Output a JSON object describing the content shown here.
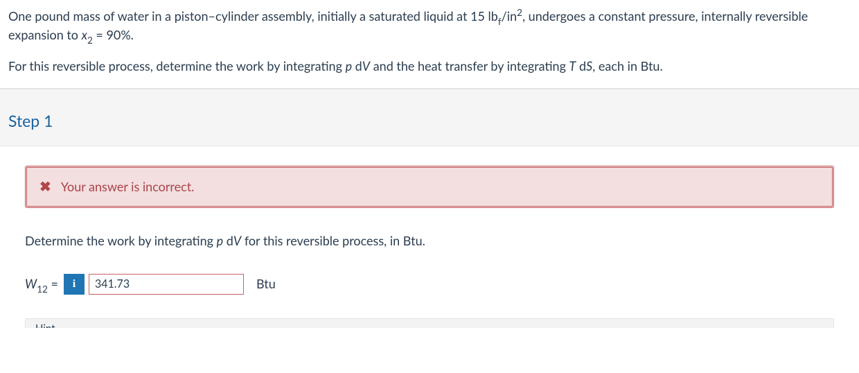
{
  "question": {
    "paragraph1_html": "One pound mass of water in a piston–cylinder assembly, initially a saturated liquid at 15 lb<sub>f</sub>/in<sup>2</sup>, undergoes a constant pressure, internally reversible expansion to <span class=\"italic\">x</span><sub>2</sub> = 90%.",
    "paragraph2_html": "For this reversible process, determine the work by integrating <span class=\"italic\">p</span> d<span class=\"italic\">V</span> and the heat transfer by integrating <span class=\"italic\">T</span> d<span class=\"italic\">S</span>, each in Btu."
  },
  "step": {
    "title": "Step 1",
    "feedback": {
      "status": "incorrect",
      "message": "Your answer is incorrect."
    },
    "prompt_html": "Determine the work by integrating <span class=\"italic\">p</span> d<span class=\"italic\">V</span> for this reversible process, in Btu.",
    "answer": {
      "label_html": "<span class=\"italic\">W</span><sub>12</sub> =",
      "info_badge": "i",
      "value": "341.73",
      "unit": "Btu"
    }
  },
  "colors": {
    "text": "#2b3d4f",
    "step_title": "#1a629e",
    "step_bg": "#f5f5f5",
    "feedback_bg": "#f4dfe0",
    "feedback_border": "#c1595a",
    "feedback_text": "#a9444a",
    "x_icon": "#b24647",
    "info_badge_bg": "#2076b3",
    "input_border": "#c56363",
    "divider": "#e4e4e4"
  }
}
